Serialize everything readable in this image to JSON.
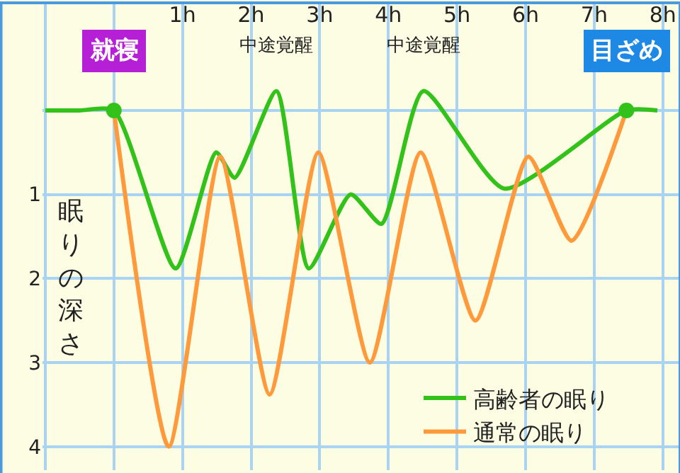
{
  "chart_data": {
    "type": "line",
    "ylabel": "眠りの深さ",
    "series": [
      {
        "name": "高齢者の眠り",
        "color": "#33c21a",
        "x": [
          -1,
          -0.5,
          0,
          0.9,
          1.49,
          1.76,
          2.37,
          2.84,
          3.45,
          3.9,
          4.51,
          5.69,
          7.47,
          7.92
        ],
        "values": [
          0,
          0,
          0,
          1.88,
          0.5,
          0.8,
          -0.23,
          1.88,
          1.0,
          1.35,
          -0.23,
          0.93,
          0,
          0
        ]
      },
      {
        "name": "通常の眠り",
        "color": "#ff9a3c",
        "x": [
          0,
          0.8,
          1.55,
          2.27,
          2.98,
          3.73,
          4.47,
          5.27,
          6.04,
          6.67,
          7.47
        ],
        "values": [
          0,
          4.0,
          0.55,
          3.38,
          0.5,
          3.0,
          0.5,
          2.5,
          0.55,
          1.55,
          0
        ]
      }
    ],
    "annotations": [
      {
        "text": "就寝",
        "x": 0,
        "y": 0
      },
      {
        "text": "中途覚醒",
        "x": 2.37,
        "y": -0.23
      },
      {
        "text": "中途覚醒",
        "x": 4.51,
        "y": -0.23
      },
      {
        "text": "目ざめ",
        "x": 7.47,
        "y": 0
      }
    ],
    "xlim": [
      -1.04,
      8.25
    ],
    "ylim": [
      4.28,
      -1.28
    ],
    "xticks": [
      {
        "value": -1,
        "label": null
      },
      {
        "value": 0,
        "label": null
      },
      {
        "value": 1,
        "label": "1h"
      },
      {
        "value": 2,
        "label": "2h"
      },
      {
        "value": 3,
        "label": "3h"
      },
      {
        "value": 4,
        "label": "4h"
      },
      {
        "value": 5,
        "label": "5h"
      },
      {
        "value": 6,
        "label": "6h"
      },
      {
        "value": 7,
        "label": "7h"
      },
      {
        "value": 8,
        "label": "8h"
      }
    ],
    "yticks": [
      {
        "value": 0,
        "label": null
      },
      1,
      2,
      3,
      4
    ],
    "grid": true,
    "legend": "bottom right",
    "marker": "none",
    "line_style": "solid"
  }
}
